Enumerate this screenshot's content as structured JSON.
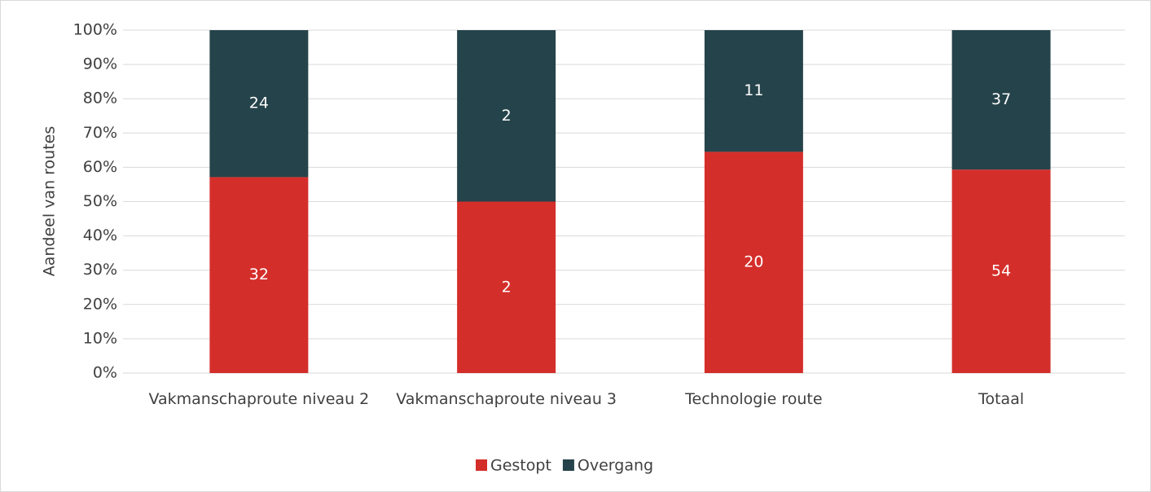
{
  "chart_data": {
    "type": "bar",
    "stacked": "percent",
    "ylabel": "Aandeel van routes",
    "categories": [
      "Vakmanschaproute niveau 2",
      "Vakmanschaproute niveau 3",
      "Technologie route",
      "Totaal"
    ],
    "series": [
      {
        "name": "Gestopt",
        "color": "#d42e2a",
        "values": [
          32,
          2,
          20,
          54
        ]
      },
      {
        "name": "Overgang",
        "color": "#25434a",
        "values": [
          24,
          2,
          11,
          37
        ]
      }
    ],
    "ylim": [
      0,
      100
    ],
    "yticks": [
      {
        "value": 0,
        "label": "0%"
      },
      {
        "value": 10,
        "label": "10%"
      },
      {
        "value": 20,
        "label": "20%"
      },
      {
        "value": 30,
        "label": "30%"
      },
      {
        "value": 40,
        "label": "40%"
      },
      {
        "value": 50,
        "label": "50%"
      },
      {
        "value": 60,
        "label": "60%"
      },
      {
        "value": 70,
        "label": "70%"
      },
      {
        "value": 80,
        "label": "80%"
      },
      {
        "value": 90,
        "label": "90%"
      },
      {
        "value": 100,
        "label": "100%"
      }
    ],
    "grid": true,
    "legend": "bottom"
  }
}
